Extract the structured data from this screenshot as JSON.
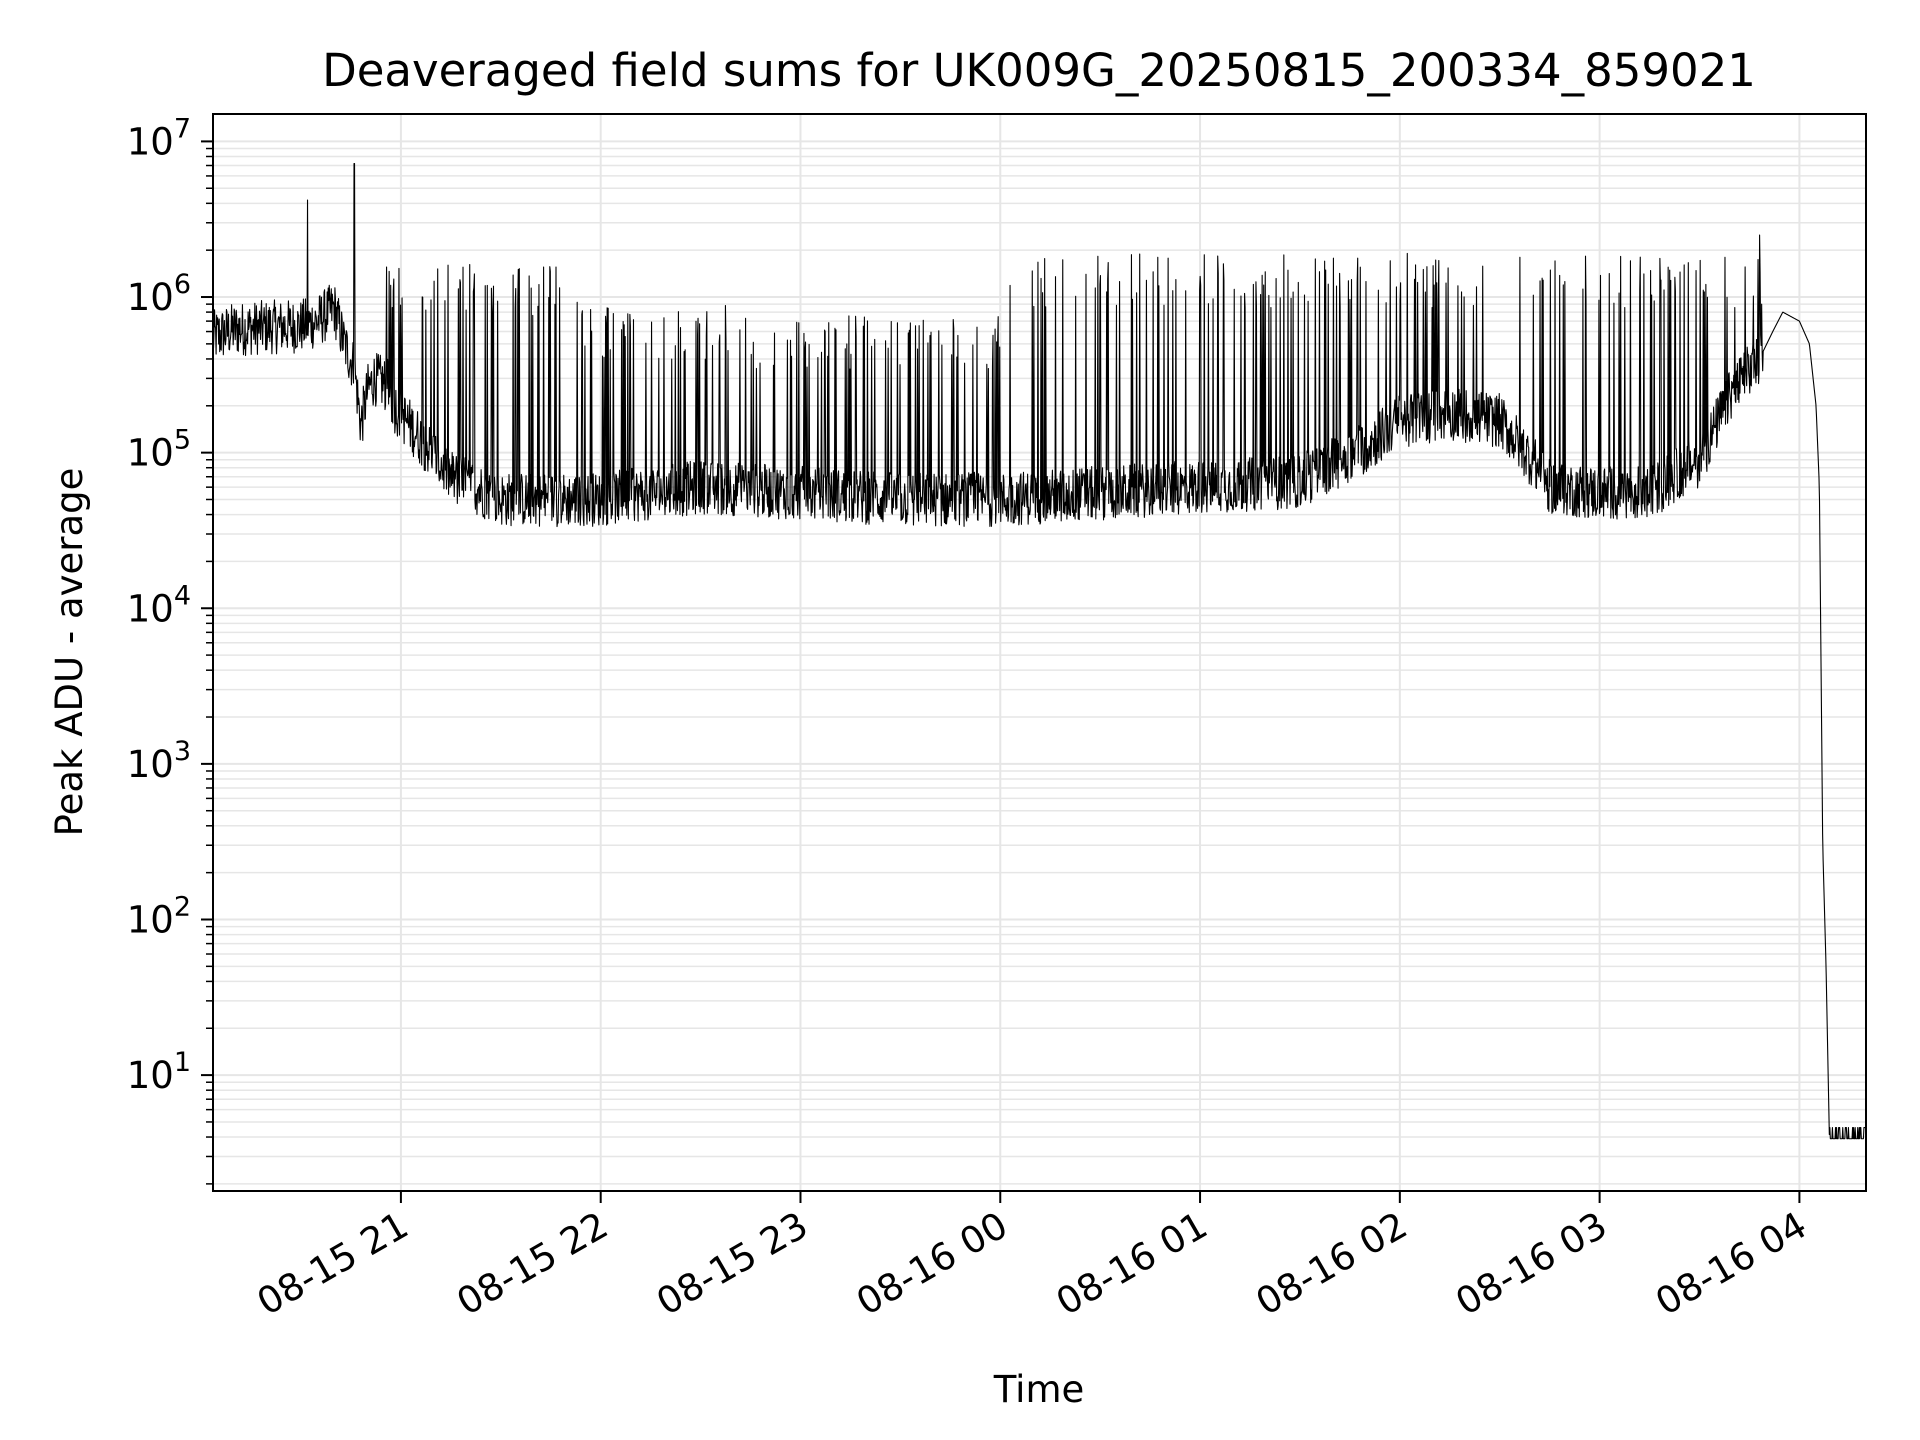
{
  "chart_data": {
    "type": "line",
    "title": "Deaveraged field sums for UK009G_20250815_200334_859021",
    "xlabel": "Time",
    "ylabel": "Peak ADU - average",
    "yscale": "log",
    "ylim": [
      1.8,
      15000000
    ],
    "xlim": [
      "2025-08-15 20:03:34",
      "2025-08-16 04:20:00"
    ],
    "grid": true,
    "line_color": "#000000",
    "grid_color": "#e6e6e6",
    "x_ticks": [
      {
        "value": "2025-08-15 21:00",
        "label": "08-15 21"
      },
      {
        "value": "2025-08-15 22:00",
        "label": "08-15 22"
      },
      {
        "value": "2025-08-15 23:00",
        "label": "08-15 23"
      },
      {
        "value": "2025-08-16 00:00",
        "label": "08-16 00"
      },
      {
        "value": "2025-08-16 01:00",
        "label": "08-16 01"
      },
      {
        "value": "2025-08-16 02:00",
        "label": "08-16 02"
      },
      {
        "value": "2025-08-16 03:00",
        "label": "08-16 03"
      },
      {
        "value": "2025-08-16 04:00",
        "label": "08-16 04"
      }
    ],
    "y_ticks": [
      {
        "value": 10,
        "base": "10",
        "exp": "1"
      },
      {
        "value": 100,
        "base": "10",
        "exp": "2"
      },
      {
        "value": 1000,
        "base": "10",
        "exp": "3"
      },
      {
        "value": 10000,
        "base": "10",
        "exp": "4"
      },
      {
        "value": 100000,
        "base": "10",
        "exp": "5"
      },
      {
        "value": 1000000,
        "base": "10",
        "exp": "6"
      },
      {
        "value": 10000000,
        "base": "10",
        "exp": "7"
      }
    ],
    "series": [
      {
        "x": [
          "2025-08-15 20:03:34",
          "2025-08-15 20:10",
          "2025-08-15 20:20",
          "2025-08-15 20:30",
          "2025-08-15 20:35",
          "2025-08-15 20:40",
          "2025-08-15 20:43",
          "2025-08-15 20:46",
          "2025-08-15 20:48",
          "2025-08-15 20:50",
          "2025-08-15 20:52",
          "2025-08-15 20:56",
          "2025-08-15 20:57",
          "2025-08-15 20:58",
          "2025-08-15 21:05",
          "2025-08-15 21:15",
          "2025-08-15 21:30",
          "2025-08-15 21:45",
          "2025-08-15 22:00",
          "2025-08-15 22:30",
          "2025-08-15 23:00",
          "2025-08-15 23:30",
          "2025-08-16 00:00",
          "2025-08-16 00:30",
          "2025-08-16 01:00",
          "2025-08-16 01:30",
          "2025-08-16 01:50",
          "2025-08-16 02:00",
          "2025-08-16 02:15",
          "2025-08-16 02:30",
          "2025-08-16 02:38",
          "2025-08-16 02:45",
          "2025-08-16 03:00",
          "2025-08-16 03:15",
          "2025-08-16 03:30",
          "2025-08-16 03:40",
          "2025-08-16 03:48",
          "2025-08-16 03:52",
          "2025-08-16 03:55",
          "2025-08-16 04:00",
          "2025-08-16 04:03",
          "2025-08-16 04:05",
          "2025-08-16 04:06",
          "2025-08-16 04:07",
          "2025-08-16 04:08",
          "2025-08-16 04:09",
          "2025-08-16 04:20"
        ],
        "y": [
          550000,
          620000,
          640000,
          650000,
          700000,
          850000,
          500000,
          350000,
          150000,
          250000,
          300000,
          270000,
          230000,
          200000,
          130000,
          70000,
          50000,
          50000,
          50000,
          60000,
          55000,
          50000,
          50000,
          55000,
          60000,
          65000,
          110000,
          160000,
          180000,
          160000,
          100000,
          60000,
          55000,
          55000,
          90000,
          250000,
          400000,
          600000,
          800000,
          700000,
          500000,
          200000,
          60000,
          300,
          50,
          4,
          4
        ]
      }
    ],
    "spike_bands": [
      {
        "from": "2025-08-15 20:55",
        "to": "2025-08-15 21:55",
        "top": 1300000,
        "label_peak": 1800000
      },
      {
        "from": "2025-08-15 21:55",
        "to": "2025-08-15 22:45",
        "top": 700000
      },
      {
        "from": "2025-08-15 22:45",
        "to": "2025-08-16 00:00",
        "top": 600000
      },
      {
        "from": "2025-08-16 00:00",
        "to": "2025-08-16 02:25",
        "top": 1500000
      },
      {
        "from": "2025-08-16 02:40",
        "to": "2025-08-16 03:55",
        "top": 1500000
      }
    ],
    "isolated_spikes": [
      {
        "x": "2025-08-15 20:32",
        "y": 4200000
      },
      {
        "x": "2025-08-15 20:46",
        "y": 7200000
      },
      {
        "x": "2025-08-16 03:48",
        "y": 2500000
      },
      {
        "x": "2025-08-16 02:36",
        "y": 1800000
      }
    ]
  }
}
